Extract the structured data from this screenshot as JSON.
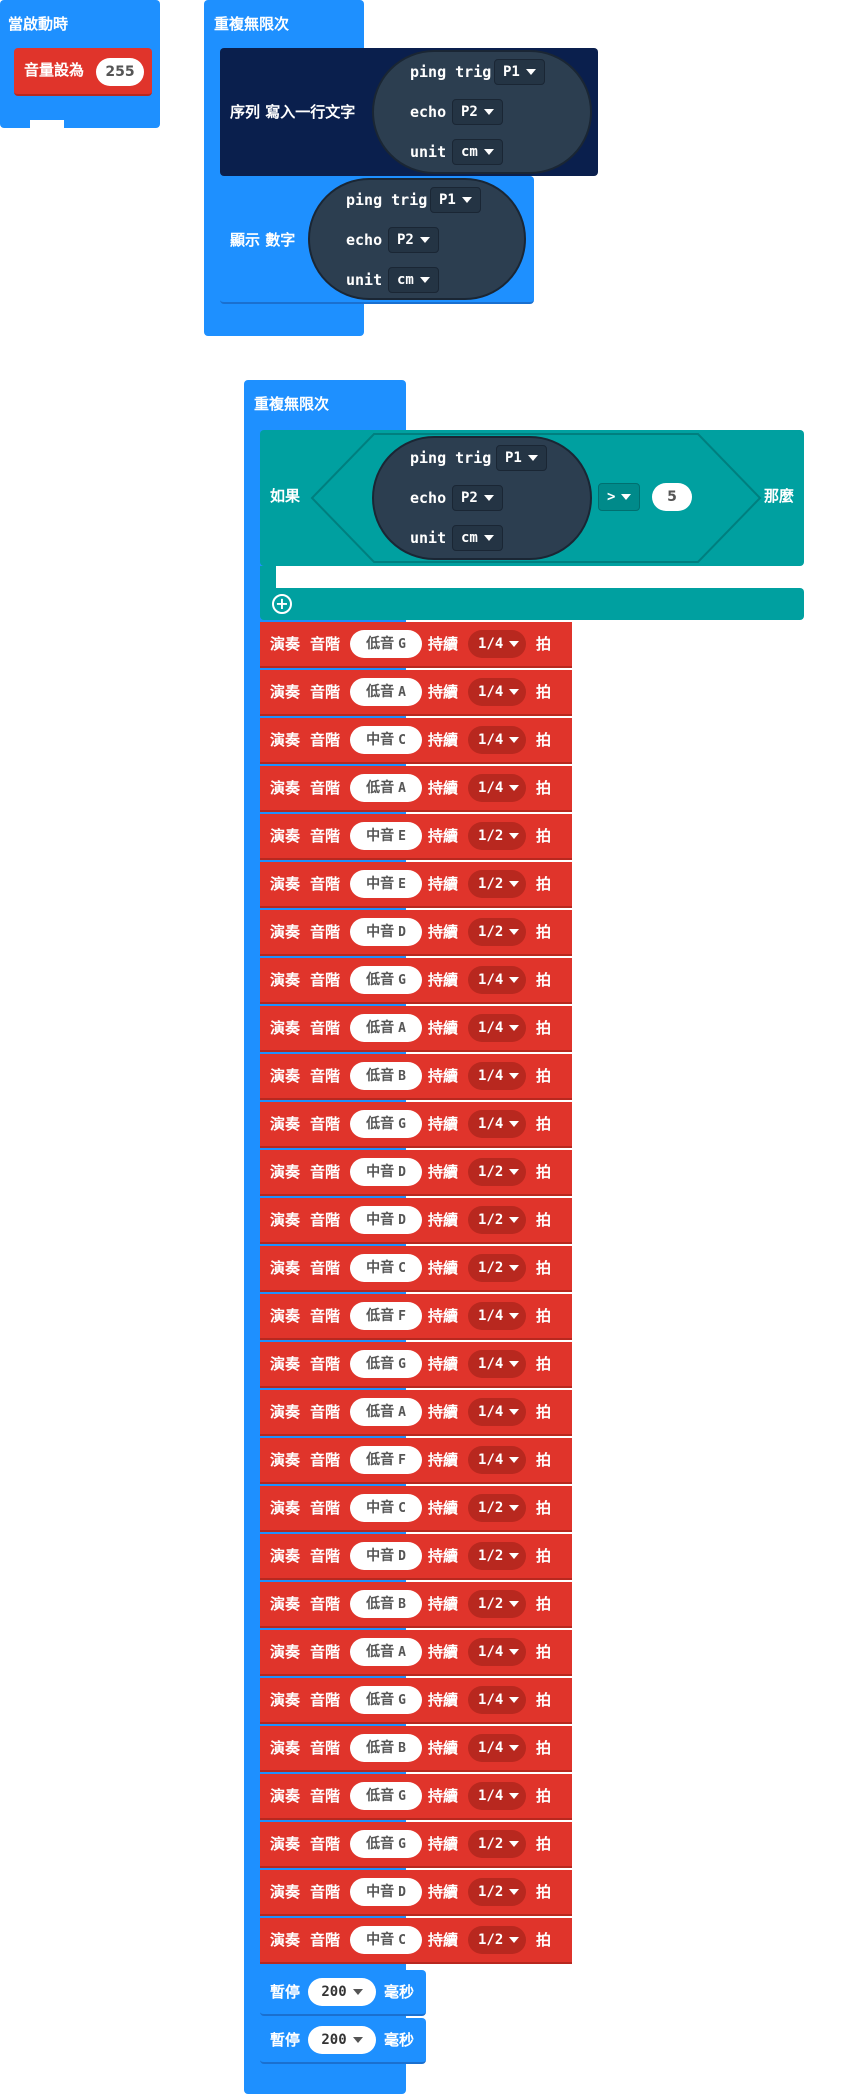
{
  "on_start": {
    "label": "當啟動時",
    "volume_label": "音量設為",
    "volume_value": "255"
  },
  "forever_top": {
    "label": "重複無限次",
    "serial": {
      "label": "序列 寫入一行文字",
      "ping_label": "ping trig",
      "trig_pin": "P1",
      "echo_label": "echo",
      "echo_pin": "P2",
      "unit_label": "unit",
      "unit_value": "cm"
    },
    "show": {
      "label": "顯示 數字",
      "ping_label": "ping trig",
      "trig_pin": "P1",
      "echo_label": "echo",
      "echo_pin": "P2",
      "unit_label": "unit",
      "unit_value": "cm"
    }
  },
  "forever_main": {
    "label": "重複無限次",
    "if": {
      "if_label": "如果",
      "then_label": "那麼",
      "ping_label": "ping trig",
      "trig_pin": "P1",
      "echo_label": "echo",
      "echo_pin": "P2",
      "unit_label": "unit",
      "unit_value": "cm",
      "operator": ">",
      "compare_value": "5"
    },
    "play": {
      "play_label": "演奏",
      "tone_label": "音階",
      "duration_label": "持續",
      "beat_label": "拍"
    },
    "notes": [
      {
        "octave": "低音",
        "note": "G",
        "beat": "1/4"
      },
      {
        "octave": "低音",
        "note": "A",
        "beat": "1/4"
      },
      {
        "octave": "中音",
        "note": "C",
        "beat": "1/4"
      },
      {
        "octave": "低音",
        "note": "A",
        "beat": "1/4"
      },
      {
        "octave": "中音",
        "note": "E",
        "beat": "1/2"
      },
      {
        "octave": "中音",
        "note": "E",
        "beat": "1/2"
      },
      {
        "octave": "中音",
        "note": "D",
        "beat": "1/2"
      },
      {
        "octave": "低音",
        "note": "G",
        "beat": "1/4"
      },
      {
        "octave": "低音",
        "note": "A",
        "beat": "1/4"
      },
      {
        "octave": "低音",
        "note": "B",
        "beat": "1/4"
      },
      {
        "octave": "低音",
        "note": "G",
        "beat": "1/4"
      },
      {
        "octave": "中音",
        "note": "D",
        "beat": "1/2"
      },
      {
        "octave": "中音",
        "note": "D",
        "beat": "1/2"
      },
      {
        "octave": "中音",
        "note": "C",
        "beat": "1/2"
      },
      {
        "octave": "低音",
        "note": "F",
        "beat": "1/4"
      },
      {
        "octave": "低音",
        "note": "G",
        "beat": "1/4"
      },
      {
        "octave": "低音",
        "note": "A",
        "beat": "1/4"
      },
      {
        "octave": "低音",
        "note": "F",
        "beat": "1/4"
      },
      {
        "octave": "中音",
        "note": "C",
        "beat": "1/2"
      },
      {
        "octave": "中音",
        "note": "D",
        "beat": "1/2"
      },
      {
        "octave": "低音",
        "note": "B",
        "beat": "1/2"
      },
      {
        "octave": "低音",
        "note": "A",
        "beat": "1/4"
      },
      {
        "octave": "低音",
        "note": "G",
        "beat": "1/4"
      },
      {
        "octave": "低音",
        "note": "B",
        "beat": "1/4"
      },
      {
        "octave": "低音",
        "note": "G",
        "beat": "1/4"
      },
      {
        "octave": "低音",
        "note": "G",
        "beat": "1/2"
      },
      {
        "octave": "中音",
        "note": "D",
        "beat": "1/2"
      },
      {
        "octave": "中音",
        "note": "C",
        "beat": "1/2"
      }
    ],
    "pauses": [
      {
        "label": "暫停",
        "value": "200",
        "unit": "毫秒"
      },
      {
        "label": "暫停",
        "value": "200",
        "unit": "毫秒"
      }
    ]
  }
}
